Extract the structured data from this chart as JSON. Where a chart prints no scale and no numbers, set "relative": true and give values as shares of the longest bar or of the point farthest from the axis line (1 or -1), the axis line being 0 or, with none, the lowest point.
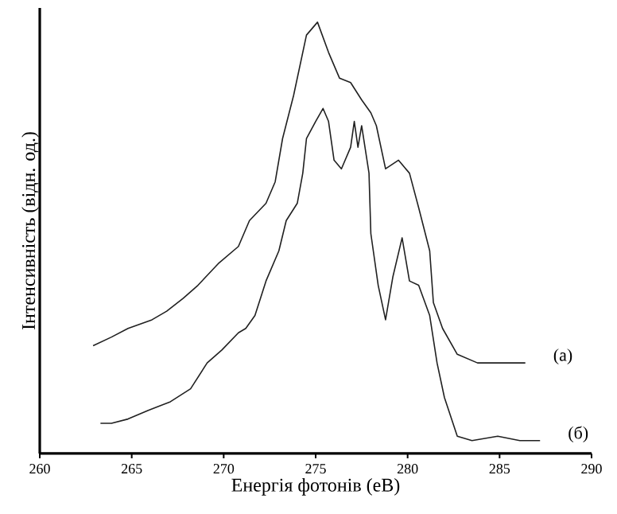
{
  "chart_data": {
    "type": "line",
    "relative": true,
    "xlabel": "Енергія фотонів (eB)",
    "ylabel": "Інтенсивність (відн. од.)",
    "xlim": [
      260,
      290
    ],
    "xticks": [
      260,
      265,
      270,
      275,
      280,
      285,
      290
    ],
    "legend": false,
    "marker": "none",
    "line_style": "solid",
    "series": [
      {
        "name": "(a)",
        "color": "#202020",
        "x": [
          262.9,
          263.9,
          264.8,
          266.1,
          266.9,
          267.8,
          268.6,
          269.7,
          270.8,
          271.4,
          272.3,
          272.8,
          273.2,
          273.8,
          274.5,
          275.1,
          275.7,
          276.3,
          276.9,
          277.5,
          278.0,
          278.3,
          278.8,
          279.5,
          280.1,
          280.6,
          281.2,
          281.4,
          281.9,
          282.7,
          283.8,
          285.2,
          286.4
        ],
        "values": [
          0.25,
          0.27,
          0.29,
          0.31,
          0.33,
          0.36,
          0.39,
          0.44,
          0.48,
          0.54,
          0.58,
          0.63,
          0.73,
          0.83,
          0.97,
          1,
          0.93,
          0.87,
          0.86,
          0.82,
          0.79,
          0.76,
          0.66,
          0.68,
          0.65,
          0.57,
          0.47,
          0.35,
          0.29,
          0.23,
          0.21,
          0.21,
          0.21
        ]
      },
      {
        "name": "(б)",
        "color": "#202020",
        "x": [
          263.3,
          263.9,
          264.8,
          265.9,
          267.1,
          268.2,
          269.1,
          269.9,
          270.8,
          271.2,
          271.7,
          272.3,
          273.0,
          273.4,
          274.0,
          274.3,
          274.5,
          275.0,
          275.4,
          275.7,
          276.0,
          276.4,
          276.9,
          277.1,
          277.3,
          277.5,
          277.9,
          278.0,
          278.4,
          278.8,
          279.2,
          279.7,
          280.1,
          280.6,
          281.2,
          281.6,
          282.0,
          282.7,
          283.5,
          284.9,
          286.1,
          287.2
        ],
        "values": [
          0.07,
          0.07,
          0.08,
          0.1,
          0.12,
          0.15,
          0.21,
          0.24,
          0.28,
          0.29,
          0.32,
          0.4,
          0.47,
          0.54,
          0.58,
          0.65,
          0.73,
          0.77,
          0.8,
          0.77,
          0.68,
          0.66,
          0.71,
          0.77,
          0.71,
          0.76,
          0.65,
          0.51,
          0.39,
          0.31,
          0.41,
          0.5,
          0.4,
          0.39,
          0.32,
          0.21,
          0.13,
          0.04,
          0.03,
          0.04,
          0.03,
          0.03
        ]
      }
    ]
  }
}
